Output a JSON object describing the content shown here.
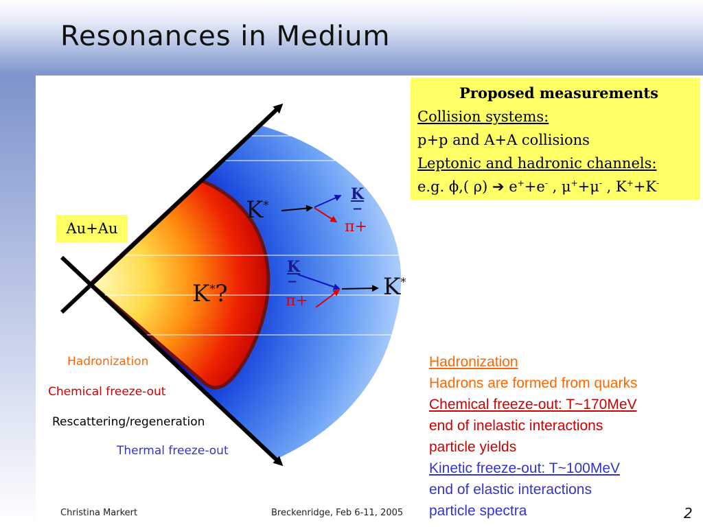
{
  "slide": {
    "title": "Resonances in Medium",
    "page_number": "2"
  },
  "footer": {
    "author": "Christina Markert",
    "event": "Breckenridge, Feb 6-11, 2005"
  },
  "proposed": {
    "heading": "Proposed measurements",
    "collision_label": "Collision systems:",
    "collision_value": "p+p and A+A collisions",
    "channels_label": "Leptonic and hadronic channels:",
    "example_prefix": "e.g.  ",
    "phi": "ϕ",
    "rho_part": ",( ρ) ",
    "arrow": "➔",
    "e_plus": "e",
    "mu_plus": "μ",
    "k_plus": "K"
  },
  "diagram": {
    "system_label": "Au+Au",
    "kstar": "K",
    "kstar_sup": "*",
    "kstar_q": "?",
    "decay_kaon": "K",
    "decay_minus": "−",
    "decay_pion": "π+",
    "stages": {
      "hadronization": "Hadronization",
      "chemical": "Chemical freeze-out",
      "rescattering": "Rescattering/regeneration",
      "thermal": "Thermal freeze-out"
    },
    "stage_colors": {
      "hadronization": "#ff6600",
      "chemical": "#cc0000",
      "rescattering": "#000000",
      "thermal": "#3333cc"
    }
  },
  "explanation": [
    {
      "text": "Hadronization",
      "color": "#ff6600",
      "underline": true
    },
    {
      "text": "Hadrons are formed from quarks",
      "color": "#ff6600",
      "underline": false
    },
    {
      "text": "Chemical freeze-out: T~170MeV",
      "color": "#cc0000",
      "underline": true
    },
    {
      "text": "end of inelastic interactions",
      "color": "#cc0000",
      "underline": false
    },
    {
      "text": "particle yields",
      "color": "#cc0000",
      "underline": false
    },
    {
      "text": "Kinetic freeze-out: T~100MeV",
      "color": "#3333cc",
      "underline": true
    },
    {
      "text": "end of elastic interactions",
      "color": "#3333cc",
      "underline": false
    },
    {
      "text": "particle spectra",
      "color": "#3333cc",
      "underline": false
    }
  ]
}
